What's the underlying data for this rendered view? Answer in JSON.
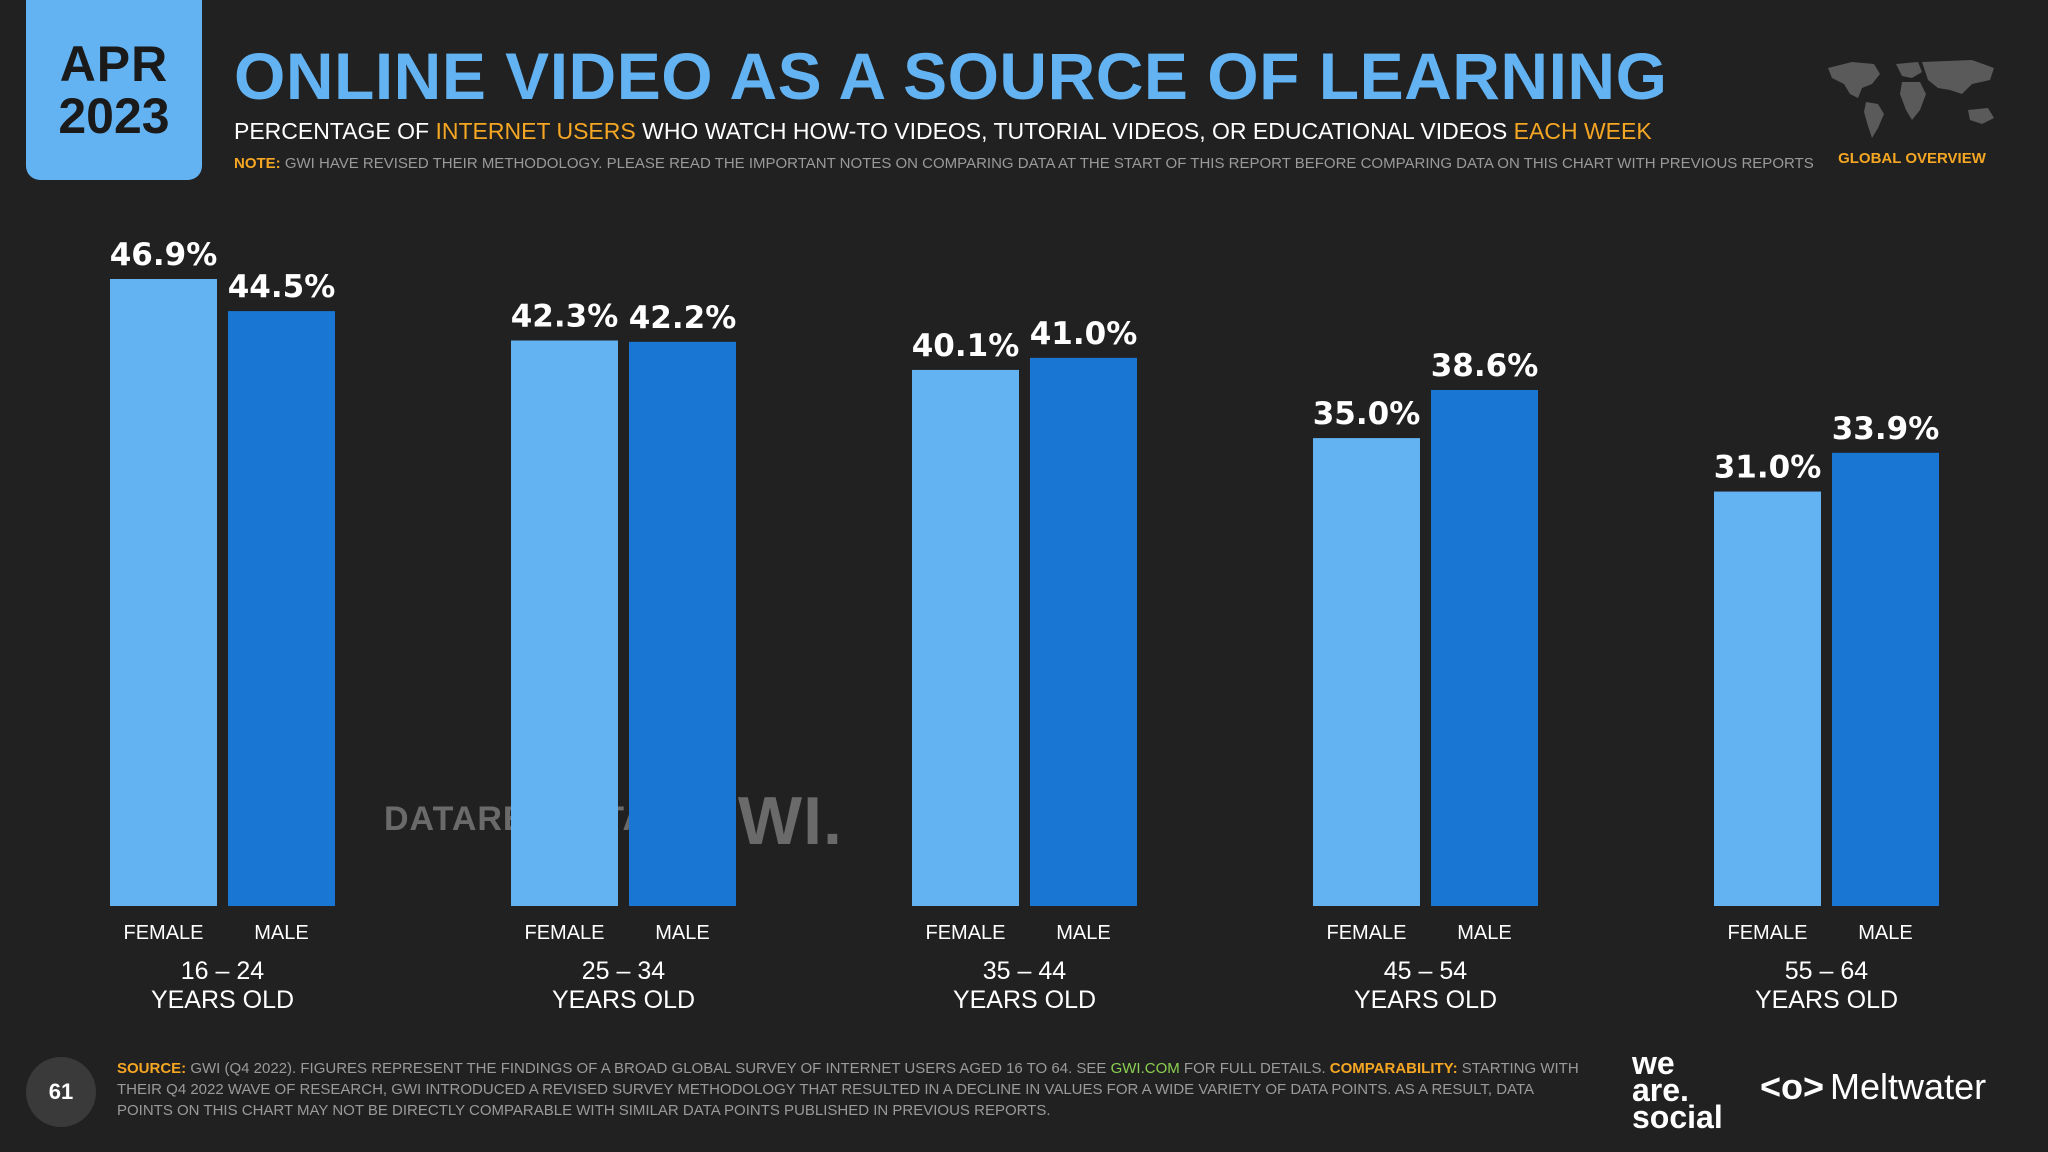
{
  "header": {
    "date_month": "APR",
    "date_year": "2023",
    "title": "ONLINE VIDEO AS A SOURCE OF LEARNING",
    "subtitle_part1": "PERCENTAGE OF ",
    "subtitle_highlight1": "INTERNET USERS",
    "subtitle_part2": " WHO WATCH HOW-TO VIDEOS, TUTORIAL VIDEOS, OR EDUCATIONAL VIDEOS ",
    "subtitle_highlight2": "EACH WEEK",
    "note_label": "NOTE:",
    "note_text": " GWI HAVE REVISED THEIR METHODOLOGY. PLEASE READ THE IMPORTANT NOTES ON COMPARING DATA AT THE START OF THIS REPORT BEFORE COMPARING DATA ON THIS CHART WITH PREVIOUS REPORTS",
    "section_label": "GLOBAL OVERVIEW"
  },
  "colors": {
    "background": "#212121",
    "accent_blue": "#63b3f3",
    "female_bar": "#63b3f3",
    "male_bar": "#1976d2",
    "highlight_orange": "#f5a623"
  },
  "watermarks": {
    "datareportal": "DATAREPORTAL",
    "gwi": "GWI."
  },
  "chart_data": {
    "type": "bar",
    "categories": [
      "16 – 24\nYEARS OLD",
      "25 – 34\nYEARS OLD",
      "35 – 44\nYEARS OLD",
      "45 – 54\nYEARS OLD",
      "55 – 64\nYEARS OLD"
    ],
    "category_lines": [
      [
        "16 – 24",
        "YEARS OLD"
      ],
      [
        "25 – 34",
        "YEARS OLD"
      ],
      [
        "35 – 44",
        "YEARS OLD"
      ],
      [
        "45 – 54",
        "YEARS OLD"
      ],
      [
        "55 – 64",
        "YEARS OLD"
      ]
    ],
    "series": [
      {
        "name": "FEMALE",
        "values": [
          46.9,
          42.3,
          40.1,
          35.0,
          31.0
        ],
        "labels": [
          "46.9%",
          "42.3%",
          "40.1%",
          "35.0%",
          "31.0%"
        ]
      },
      {
        "name": "MALE",
        "values": [
          44.5,
          42.2,
          41.0,
          38.6,
          33.9
        ],
        "labels": [
          "44.5%",
          "42.2%",
          "41.0%",
          "38.6%",
          "33.9%"
        ]
      }
    ],
    "ylim": [
      0,
      46.9
    ],
    "grid": false,
    "legend": "none"
  },
  "footer": {
    "page_number": "61",
    "source_label": "SOURCE:",
    "source_text": " GWI (Q4 2022). FIGURES REPRESENT THE FINDINGS OF A BROAD GLOBAL SURVEY OF INTERNET USERS AGED 16 TO 64. SEE ",
    "source_link": "GWI.COM",
    "source_text2": " FOR FULL DETAILS. ",
    "comparability_label": "COMPARABILITY:",
    "comparability_text": " STARTING WITH THEIR Q4 2022 WAVE OF RESEARCH, GWI INTRODUCED A REVISED SURVEY METHODOLOGY THAT RESULTED IN A DECLINE IN VALUES FOR A WIDE VARIETY OF DATA POINTS. AS A RESULT, DATA POINTS ON THIS CHART MAY NOT BE DIRECTLY COMPARABLE WITH SIMILAR DATA POINTS PUBLISHED IN PREVIOUS REPORTS.",
    "logo_we": "we",
    "logo_are": "are.",
    "logo_social": "social",
    "logo_meltwater_mark": "<o>",
    "logo_meltwater": "Meltwater"
  }
}
